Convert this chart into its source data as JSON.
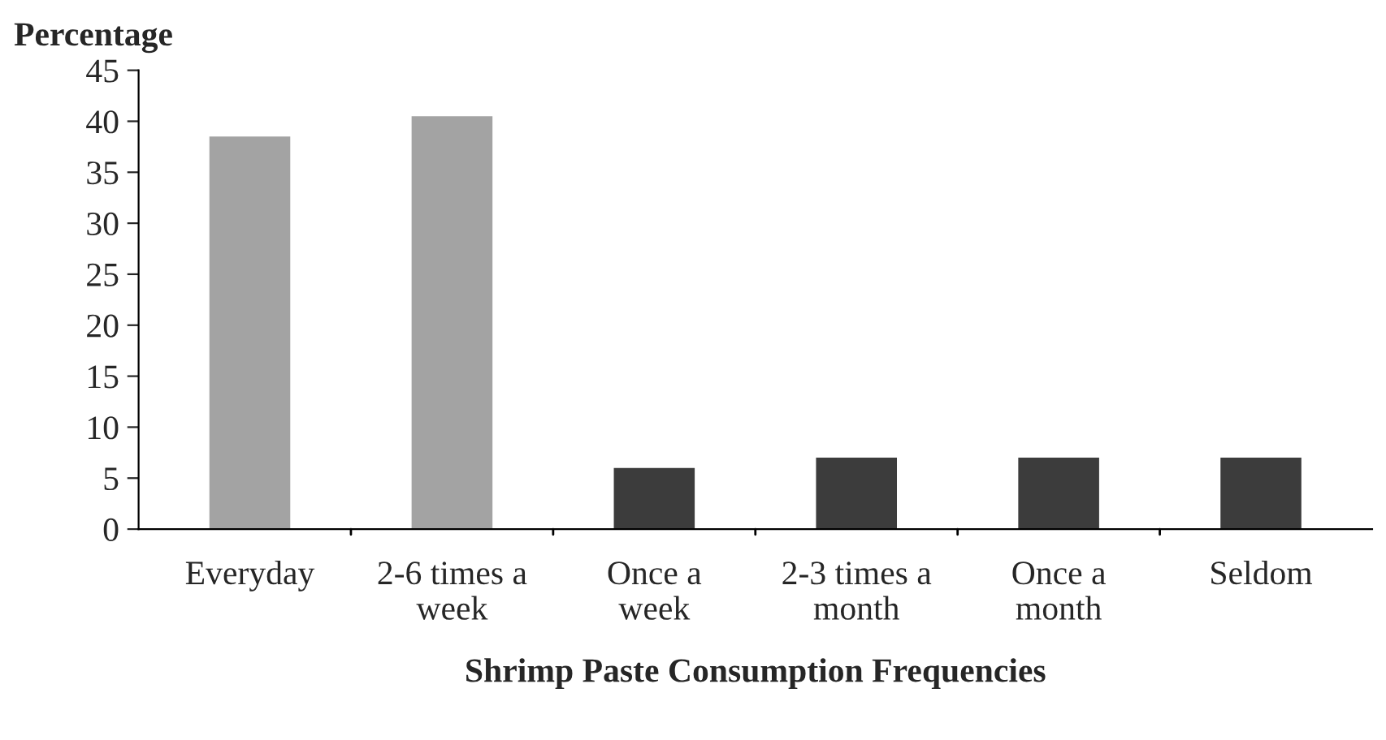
{
  "chart_data": {
    "type": "bar",
    "xlabel": "Shrimp Paste Consumption Frequencies",
    "ylabel": "Percentage",
    "categories": [
      "Everyday",
      "2-6 times a\nweek",
      "Once a\nweek",
      "2-3 times a\nmonth",
      "Once a\nmonth",
      "Seldom"
    ],
    "values": [
      38.5,
      40.5,
      6,
      7,
      7,
      7
    ],
    "colors": [
      "#a3a3a3",
      "#a3a3a3",
      "#3c3c3c",
      "#3c3c3c",
      "#3c3c3c",
      "#3c3c3c"
    ],
    "ylim": [
      0,
      45
    ],
    "yticks": [
      0,
      5,
      10,
      15,
      20,
      25,
      30,
      35,
      40,
      45
    ],
    "grid": false,
    "legend": false
  }
}
